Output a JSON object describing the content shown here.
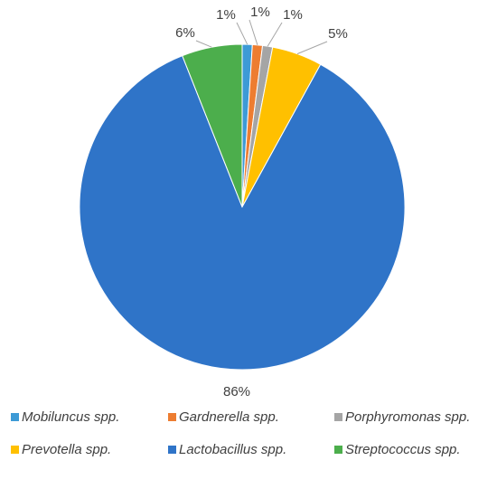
{
  "chart_data": {
    "type": "pie",
    "categories": [
      "Mobiluncus spp.",
      "Gardnerella spp.",
      "Porphyromonas spp.",
      "Prevotella spp.",
      "Lactobacillus spp.",
      "Streptococcus spp."
    ],
    "values": [
      1,
      1,
      1,
      5,
      86,
      6
    ],
    "value_labels": [
      "1%",
      "1%",
      "1%",
      "5%",
      "86%",
      "6%"
    ],
    "colors": [
      "#3d9ad6",
      "#ed7d31",
      "#a5a5a5",
      "#ffc000",
      "#2f74c8",
      "#4cae4c"
    ],
    "legend": "bottom"
  }
}
